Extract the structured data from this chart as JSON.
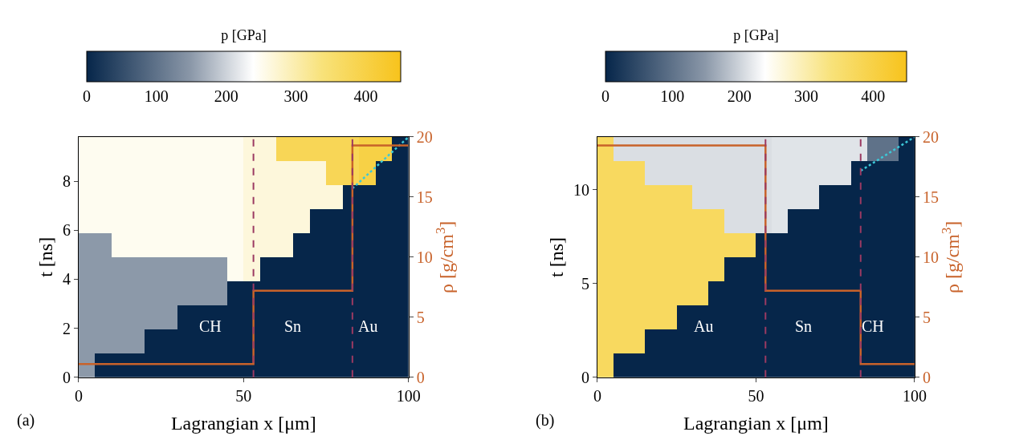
{
  "chart_data": [
    {
      "type": "heatmap",
      "clabel": "p [GPa]",
      "xlabel": "Lagrangian x [μm]",
      "ylabel": "t [ns]",
      "y2label": "ρ [g/cm$^{3}$]",
      "x": [
        2.5,
        7.5,
        12.5,
        17.5,
        22.5,
        27.5,
        32.5,
        37.5,
        42.5,
        47.5,
        52.5,
        57.5,
        62.5,
        67.5,
        72.5,
        77.5,
        82.5,
        87.5,
        92.5,
        97.5
      ],
      "y": [
        9.31,
        8.33,
        7.35,
        6.37,
        5.39,
        4.41,
        3.43,
        2.45,
        1.47,
        0.49
      ],
      "cells": [
        [
          250,
          250,
          250,
          250,
          250,
          250,
          250,
          250,
          250,
          250,
          265,
          265,
          380,
          380,
          380,
          380,
          380,
          400,
          400,
          0
        ],
        [
          250,
          250,
          250,
          250,
          250,
          250,
          250,
          250,
          250,
          250,
          265,
          265,
          265,
          265,
          265,
          380,
          380,
          400,
          0,
          0
        ],
        [
          250,
          250,
          250,
          250,
          250,
          250,
          250,
          250,
          250,
          250,
          265,
          265,
          265,
          265,
          265,
          265,
          0,
          0,
          0,
          0
        ],
        [
          250,
          250,
          250,
          250,
          250,
          250,
          250,
          250,
          250,
          250,
          265,
          265,
          265,
          265,
          0,
          0,
          0,
          0,
          0,
          0
        ],
        [
          150,
          150,
          250,
          250,
          250,
          250,
          250,
          250,
          250,
          250,
          265,
          265,
          265,
          0,
          0,
          0,
          0,
          0,
          0,
          0
        ],
        [
          150,
          150,
          150,
          150,
          150,
          150,
          150,
          150,
          150,
          250,
          265,
          0,
          0,
          0,
          0,
          0,
          0,
          0,
          0,
          0
        ],
        [
          150,
          150,
          150,
          150,
          150,
          150,
          150,
          150,
          150,
          0,
          0,
          0,
          0,
          0,
          0,
          0,
          0,
          0,
          0,
          0
        ],
        [
          150,
          150,
          150,
          150,
          150,
          150,
          0,
          0,
          0,
          0,
          0,
          0,
          0,
          0,
          0,
          0,
          0,
          0,
          0,
          0
        ],
        [
          150,
          150,
          150,
          150,
          0,
          0,
          0,
          0,
          0,
          0,
          0,
          0,
          0,
          0,
          0,
          0,
          0,
          0,
          0,
          0
        ],
        [
          150,
          0,
          0,
          0,
          0,
          0,
          0,
          0,
          0,
          0,
          0,
          0,
          0,
          0,
          0,
          0,
          0,
          0,
          0,
          0
        ]
      ],
      "clim": [
        0,
        450
      ],
      "cticks": [
        0,
        100,
        200,
        300,
        400
      ],
      "xlim": [
        0,
        100
      ],
      "xticks": [
        0,
        50,
        100
      ],
      "ylim": [
        0,
        9.8
      ],
      "yticks": [
        0,
        2,
        4,
        6,
        8
      ],
      "y2lim": [
        0,
        20
      ],
      "y2ticks": [
        0,
        5,
        10,
        15,
        20
      ],
      "series": [
        {
          "type": "step",
          "axis": "y2",
          "color": "#c8622a",
          "x": [
            0,
            53,
            83,
            100
          ],
          "values": [
            1.1,
            7.2,
            19.3,
            19.3
          ]
        },
        {
          "type": "line",
          "line_style": "dotted",
          "color": "#3cc8d8",
          "x": [
            83,
            100
          ],
          "values": [
            7.7,
            9.8
          ]
        }
      ],
      "ref_lines": [
        {
          "axis": "x",
          "value": 53,
          "color": "#9b3a62",
          "line_style": "dashed"
        },
        {
          "axis": "x",
          "value": 83,
          "color": "#9b3a62",
          "line_style": "dashed"
        }
      ],
      "annotations": [
        "CH",
        "Sn",
        "Au",
        "(a)"
      ]
    },
    {
      "type": "heatmap",
      "clabel": "p [GPa]",
      "xlabel": "Lagrangian x [μm]",
      "ylabel": "t [ns]",
      "y2label": "ρ [g/cm$^{3}$]",
      "x": [
        2.5,
        7.5,
        12.5,
        17.5,
        22.5,
        27.5,
        32.5,
        37.5,
        42.5,
        47.5,
        52.5,
        57.5,
        62.5,
        67.5,
        72.5,
        77.5,
        82.5,
        87.5,
        92.5,
        97.5
      ],
      "y": [
        12.16,
        10.88,
        9.6,
        8.32,
        7.04,
        5.76,
        4.48,
        3.2,
        1.92,
        0.64
      ],
      "cells": [
        [
          370,
          210,
          210,
          210,
          210,
          210,
          210,
          210,
          210,
          210,
          210,
          215,
          215,
          215,
          215,
          215,
          215,
          100,
          100,
          0
        ],
        [
          370,
          370,
          370,
          210,
          210,
          210,
          210,
          210,
          210,
          210,
          210,
          215,
          215,
          215,
          215,
          215,
          0,
          0,
          0,
          0
        ],
        [
          370,
          370,
          370,
          370,
          370,
          370,
          210,
          210,
          210,
          210,
          210,
          215,
          215,
          215,
          0,
          0,
          0,
          0,
          0,
          0
        ],
        [
          370,
          370,
          370,
          370,
          370,
          370,
          370,
          370,
          210,
          210,
          210,
          215,
          0,
          0,
          0,
          0,
          0,
          0,
          0,
          0
        ],
        [
          370,
          370,
          370,
          370,
          370,
          370,
          370,
          370,
          370,
          370,
          0,
          0,
          0,
          0,
          0,
          0,
          0,
          0,
          0,
          0
        ],
        [
          370,
          370,
          370,
          370,
          370,
          370,
          370,
          370,
          0,
          0,
          0,
          0,
          0,
          0,
          0,
          0,
          0,
          0,
          0,
          0
        ],
        [
          370,
          370,
          370,
          370,
          370,
          370,
          370,
          0,
          0,
          0,
          0,
          0,
          0,
          0,
          0,
          0,
          0,
          0,
          0,
          0
        ],
        [
          370,
          370,
          370,
          370,
          370,
          0,
          0,
          0,
          0,
          0,
          0,
          0,
          0,
          0,
          0,
          0,
          0,
          0,
          0,
          0
        ],
        [
          370,
          370,
          370,
          0,
          0,
          0,
          0,
          0,
          0,
          0,
          0,
          0,
          0,
          0,
          0,
          0,
          0,
          0,
          0,
          0
        ],
        [
          370,
          0,
          0,
          0,
          0,
          0,
          0,
          0,
          0,
          0,
          0,
          0,
          0,
          0,
          0,
          0,
          0,
          0,
          0,
          0
        ]
      ],
      "clim": [
        0,
        450
      ],
      "cticks": [
        0,
        100,
        200,
        300,
        400
      ],
      "xlim": [
        0,
        100
      ],
      "xticks": [
        0,
        50,
        100
      ],
      "ylim": [
        0,
        12.8
      ],
      "yticks": [
        0,
        5,
        10
      ],
      "y2lim": [
        0,
        20
      ],
      "y2ticks": [
        0,
        5,
        10,
        15,
        20
      ],
      "series": [
        {
          "type": "step",
          "axis": "y2",
          "color": "#c8622a",
          "x": [
            0,
            53,
            83,
            100
          ],
          "values": [
            19.3,
            7.2,
            1.1,
            1.1
          ]
        },
        {
          "type": "line",
          "line_style": "dotted",
          "color": "#3cc8d8",
          "x": [
            83,
            100
          ],
          "values": [
            11,
            12.8
          ]
        }
      ],
      "ref_lines": [
        {
          "axis": "x",
          "value": 53,
          "color": "#9b3a62",
          "line_style": "dashed"
        },
        {
          "axis": "x",
          "value": 83,
          "color": "#9b3a62",
          "line_style": "dashed"
        }
      ],
      "annotations": [
        "Au",
        "Sn",
        "CH",
        "(b)"
      ]
    }
  ]
}
